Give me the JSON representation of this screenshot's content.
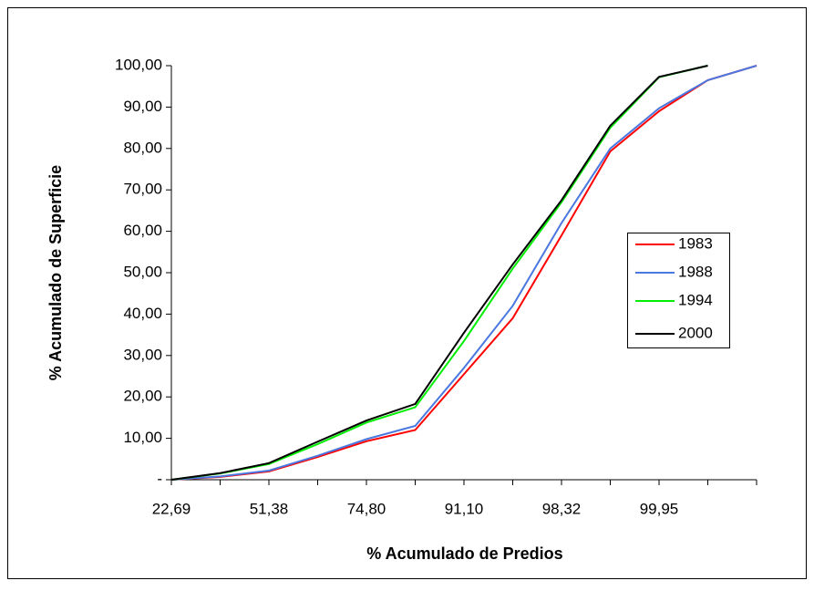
{
  "chart_data": {
    "type": "line",
    "xlabel": "% Acumulado de Predios",
    "ylabel": "% Acumulado de Superficie",
    "categories": [
      "22,69",
      null,
      "51,38",
      null,
      "74,80",
      null,
      "91,10",
      null,
      "98,32",
      null,
      "99,95",
      null,
      null
    ],
    "series": [
      {
        "name": "1983",
        "color": "#ff0000",
        "values": [
          0,
          0.7,
          2,
          5.5,
          9.3,
          12,
          25.5,
          39,
          59,
          79.3,
          89,
          96.5,
          100
        ]
      },
      {
        "name": "1988",
        "color": "#4a78e0",
        "values": [
          0,
          0.8,
          2.2,
          5.8,
          9.8,
          13,
          27,
          42,
          62,
          80,
          89.7,
          96.5,
          100
        ]
      },
      {
        "name": "1994",
        "color": "#00ee00",
        "values": [
          0,
          1.5,
          3.8,
          8.6,
          13.8,
          17.5,
          33.5,
          51,
          67,
          85,
          97.2,
          100,
          null
        ]
      },
      {
        "name": "2000",
        "color": "#000000",
        "values": [
          0,
          1.6,
          4,
          9.2,
          14.3,
          18.3,
          35.5,
          52,
          67.5,
          85.5,
          97.3,
          100,
          null
        ]
      }
    ],
    "ylim": [
      0,
      100
    ],
    "yticks": [
      {
        "value": 0,
        "label": "-"
      },
      {
        "value": 10,
        "label": "10,00"
      },
      {
        "value": 20,
        "label": "20,00"
      },
      {
        "value": 30,
        "label": "30,00"
      },
      {
        "value": 40,
        "label": "40,00"
      },
      {
        "value": 50,
        "label": "50,00"
      },
      {
        "value": 60,
        "label": "60,00"
      },
      {
        "value": 70,
        "label": "70,00"
      },
      {
        "value": 80,
        "label": "80,00"
      },
      {
        "value": 90,
        "label": "90,00"
      },
      {
        "value": 100,
        "label": "100,00"
      }
    ],
    "legend": "right"
  }
}
